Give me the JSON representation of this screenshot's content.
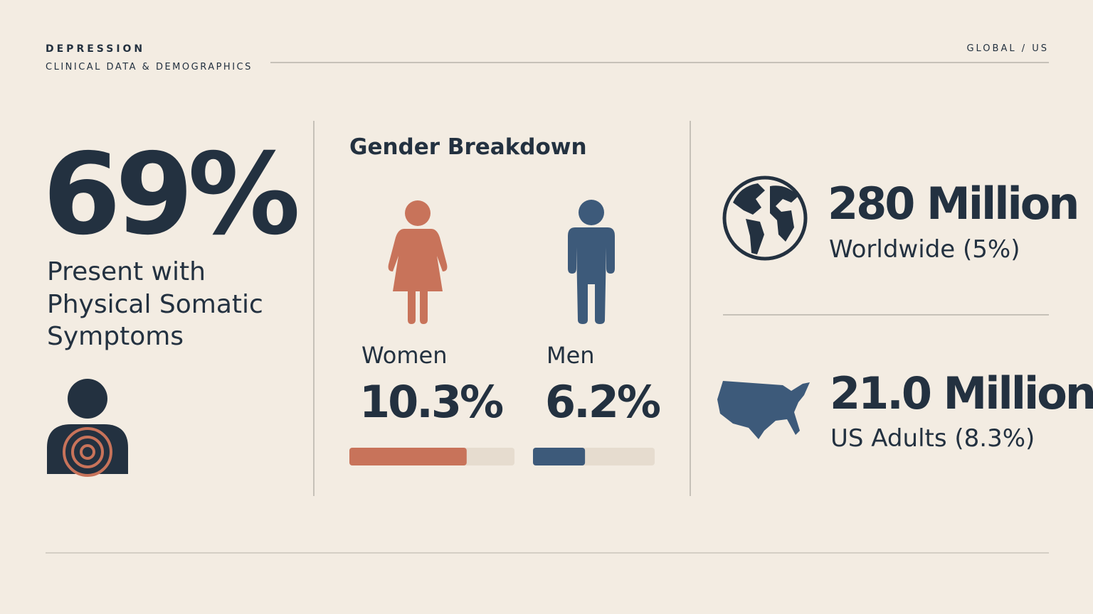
{
  "header": {
    "title": "DEPRESSION",
    "subtitle": "CLINICAL DATA & DEMOGRAPHICS",
    "scope": "GLOBAL / US"
  },
  "somatic": {
    "stat": "69%",
    "lines": [
      "Present with",
      "Physical Somatic",
      "Symptoms"
    ]
  },
  "gender": {
    "title": "Gender Breakdown",
    "xlim": [
      0,
      14.5
    ],
    "groups": [
      {
        "name": "Women",
        "value": 10.3,
        "value_label": "10.3%",
        "color": "#c8735a"
      },
      {
        "name": "Men",
        "value": 6.2,
        "value_label": "6.2%",
        "color": "#3d5a7a"
      }
    ]
  },
  "prevalence": [
    {
      "stat": "280 Million",
      "label": "Worldwide (5%)"
    },
    {
      "stat": "21.0 Million",
      "label": "US Adults (8.3%)"
    }
  ]
}
